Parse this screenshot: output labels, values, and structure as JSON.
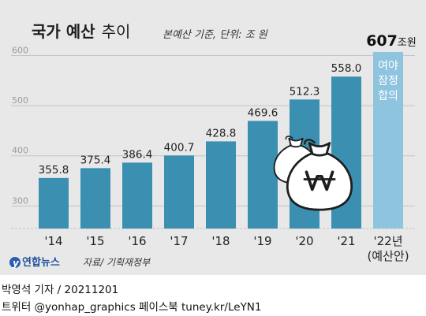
{
  "title": {
    "main": "국가 예산",
    "sub": "추이"
  },
  "note": "본예산 기준, 단위: 조 원",
  "source": "자료/ 기획재정부",
  "logo": "연합뉴스",
  "colors": {
    "bar": "#3b8fb0",
    "highlight_bar": "#8ec4de",
    "background": "#e8e8e9",
    "money_bag": "#ffffff"
  },
  "chart_data": {
    "type": "bar",
    "categories": [
      "'14",
      "'15",
      "'16",
      "'17",
      "'18",
      "'19",
      "'20",
      "'21",
      "'22년"
    ],
    "values": [
      355.8,
      375.4,
      386.4,
      400.7,
      428.8,
      469.6,
      512.3,
      558.0,
      607
    ],
    "value_labels": [
      "355.8",
      "375.4",
      "386.4",
      "400.7",
      "428.8",
      "469.6",
      "512.3",
      "558.0",
      "607"
    ],
    "last_value_unit": "조원",
    "last_category_sub": "(예산안)",
    "last_bar_annotation": [
      "여야",
      "잠정",
      "합의"
    ],
    "yticks": [
      "300",
      "400",
      "500",
      "600"
    ],
    "ylim": [
      255,
      607
    ],
    "grid": true
  },
  "footer": {
    "line1": "박영석 기자 / 20211201",
    "line2": "트위터 @yonhap_graphics  페이스북 tuney.kr/LeYN1"
  }
}
